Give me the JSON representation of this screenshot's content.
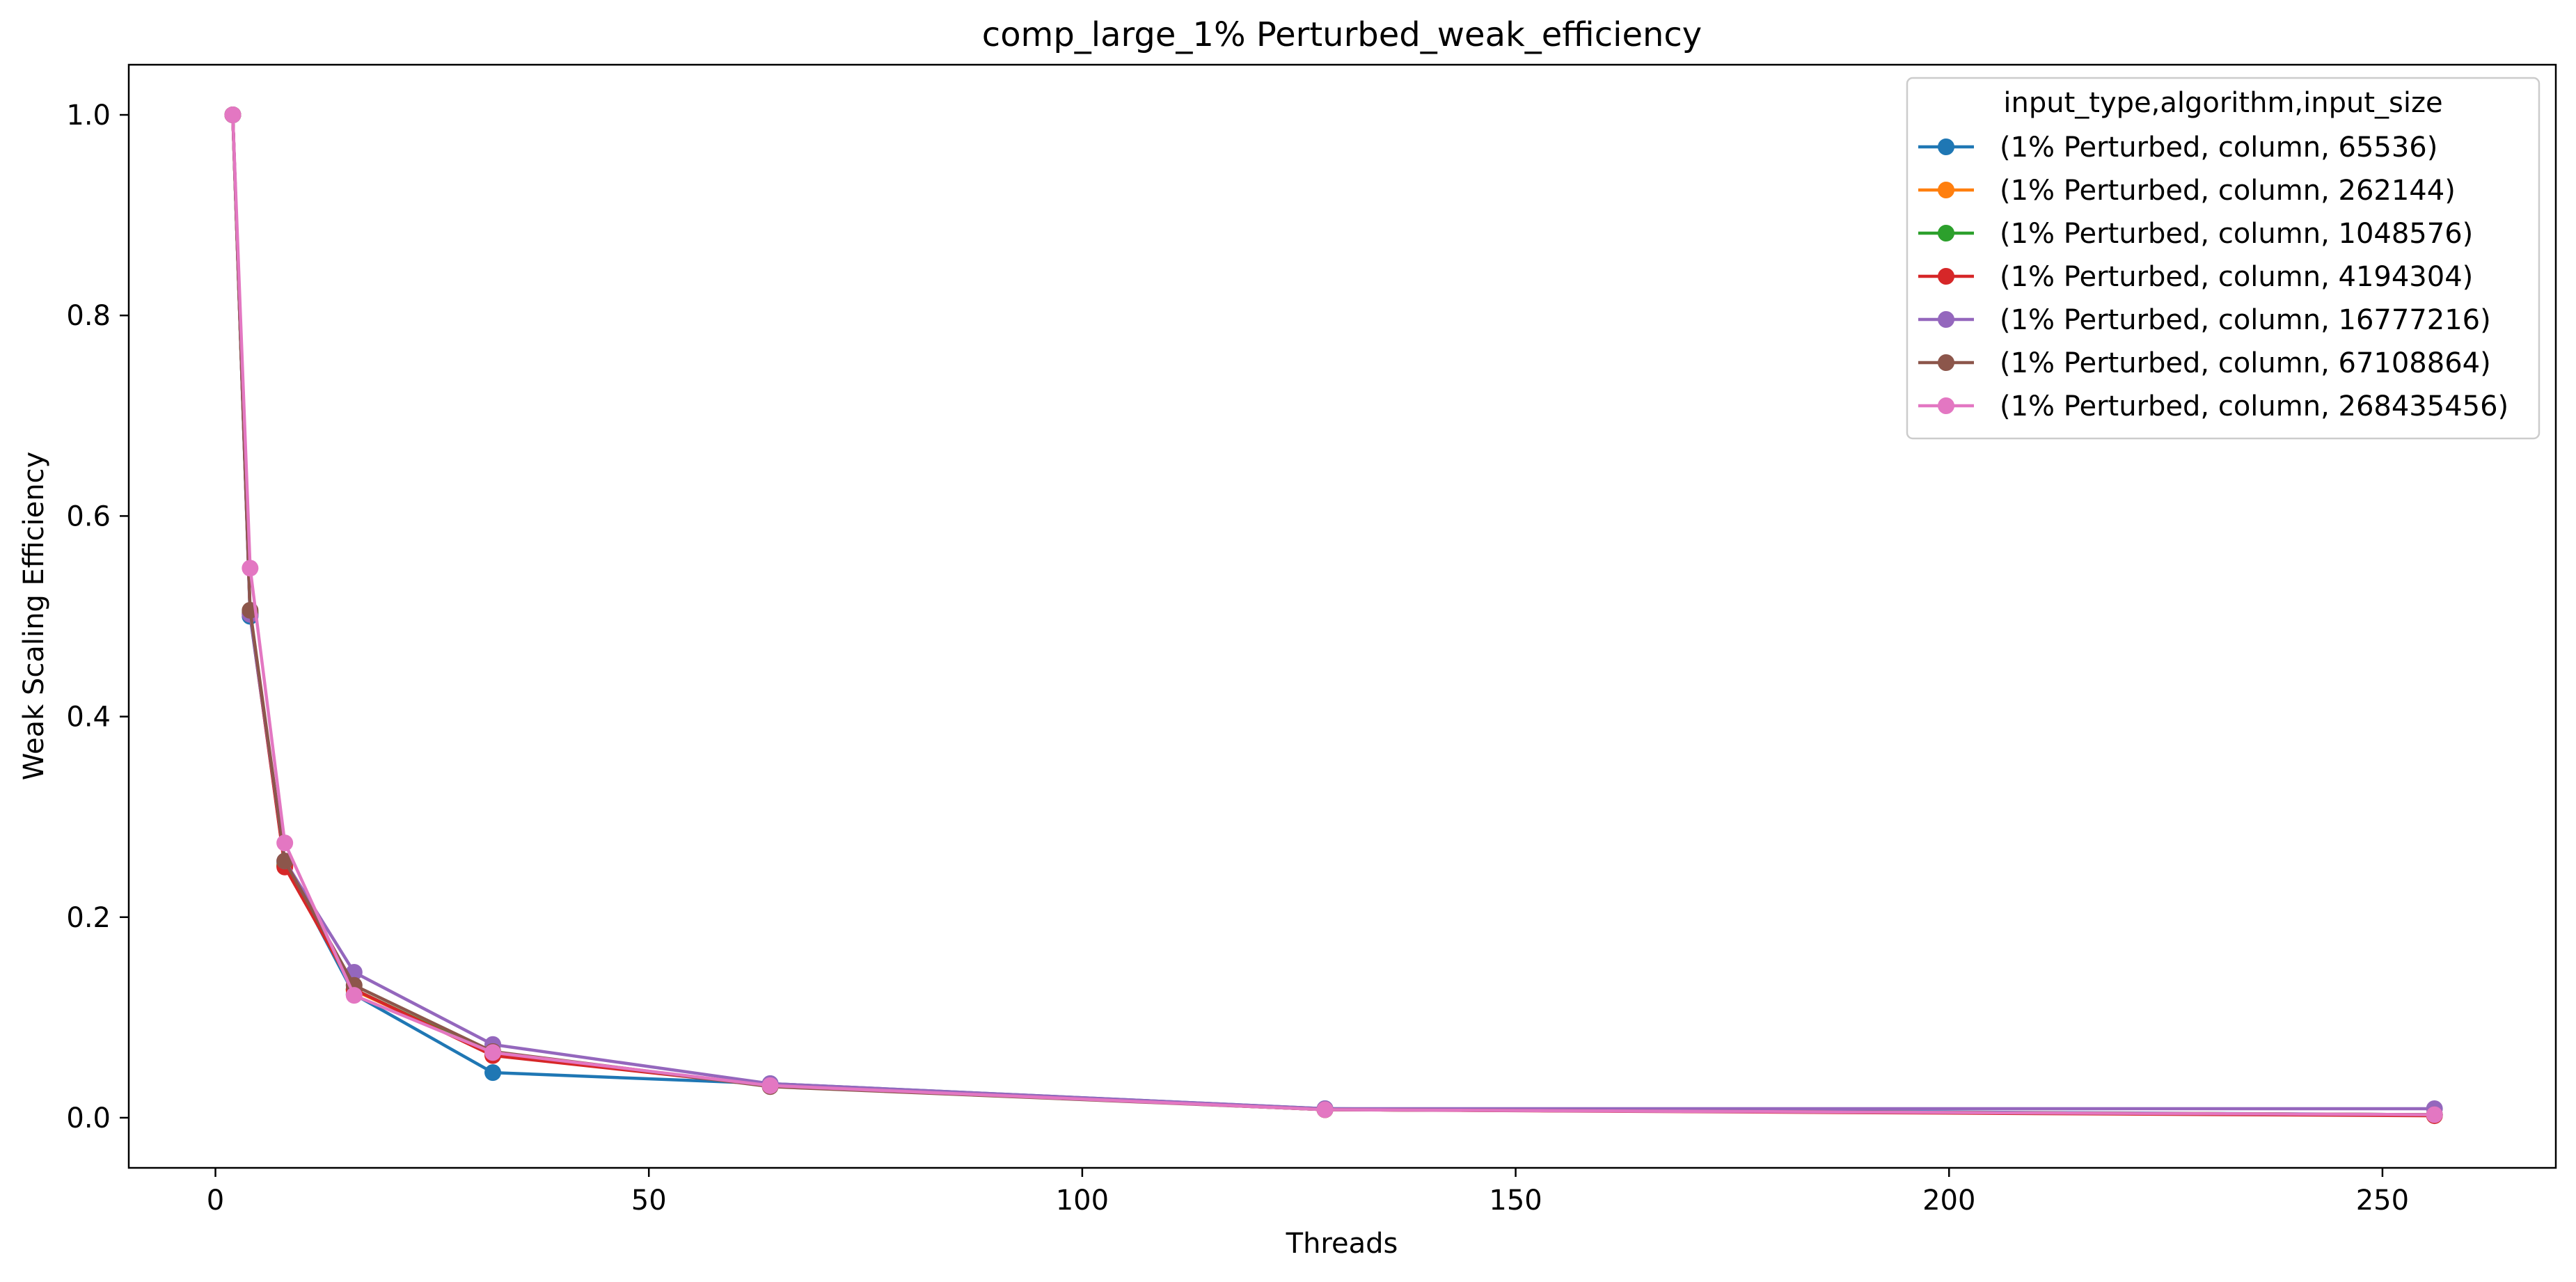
{
  "chart_data": {
    "type": "line",
    "title": "comp_large_1% Perturbed_weak_efficiency",
    "xlabel": "Threads",
    "ylabel": "Weak Scaling Efficiency",
    "xlim": [
      -10,
      270
    ],
    "ylim": [
      -0.05,
      1.05
    ],
    "x_ticks": [
      0,
      50,
      100,
      150,
      200,
      250
    ],
    "y_ticks": [
      0.0,
      0.2,
      0.4,
      0.6,
      0.8,
      1.0
    ],
    "grid": false,
    "legend": {
      "title": "input_type,algorithm,input_size",
      "placement": "top-right"
    },
    "x": [
      2,
      4,
      8,
      16,
      32,
      64,
      128,
      256
    ],
    "series": [
      {
        "name": "(1% Perturbed, column, 65536)",
        "color": "#1f77b4",
        "values": [
          1.0,
          0.5,
          0.254,
          0.123,
          0.045,
          0.034,
          0.009,
          0.003
        ]
      },
      {
        "name": "(1% Perturbed, column, 262144)",
        "color": "#ff7f0e",
        "values": [
          1.0,
          0.503,
          0.252,
          0.127,
          0.064,
          0.032,
          0.008,
          0.003
        ]
      },
      {
        "name": "(1% Perturbed, column, 1048576)",
        "color": "#2ca02c",
        "values": [
          1.0,
          0.504,
          0.251,
          0.128,
          0.063,
          0.032,
          0.008,
          0.003
        ]
      },
      {
        "name": "(1% Perturbed, column, 4194304)",
        "color": "#d62728",
        "values": [
          1.0,
          0.502,
          0.25,
          0.128,
          0.062,
          0.032,
          0.008,
          0.002
        ]
      },
      {
        "name": "(1% Perturbed, column, 16777216)",
        "color": "#9467bd",
        "values": [
          1.0,
          0.502,
          0.256,
          0.145,
          0.073,
          0.034,
          0.009,
          0.009
        ]
      },
      {
        "name": "(1% Perturbed, column, 67108864)",
        "color": "#8c564b",
        "values": [
          1.0,
          0.506,
          0.256,
          0.132,
          0.066,
          0.031,
          0.008,
          0.003
        ]
      },
      {
        "name": "(1% Perturbed, column, 268435456)",
        "color": "#e377c2",
        "values": [
          1.0,
          0.548,
          0.274,
          0.122,
          0.065,
          0.032,
          0.008,
          0.003
        ]
      }
    ]
  }
}
